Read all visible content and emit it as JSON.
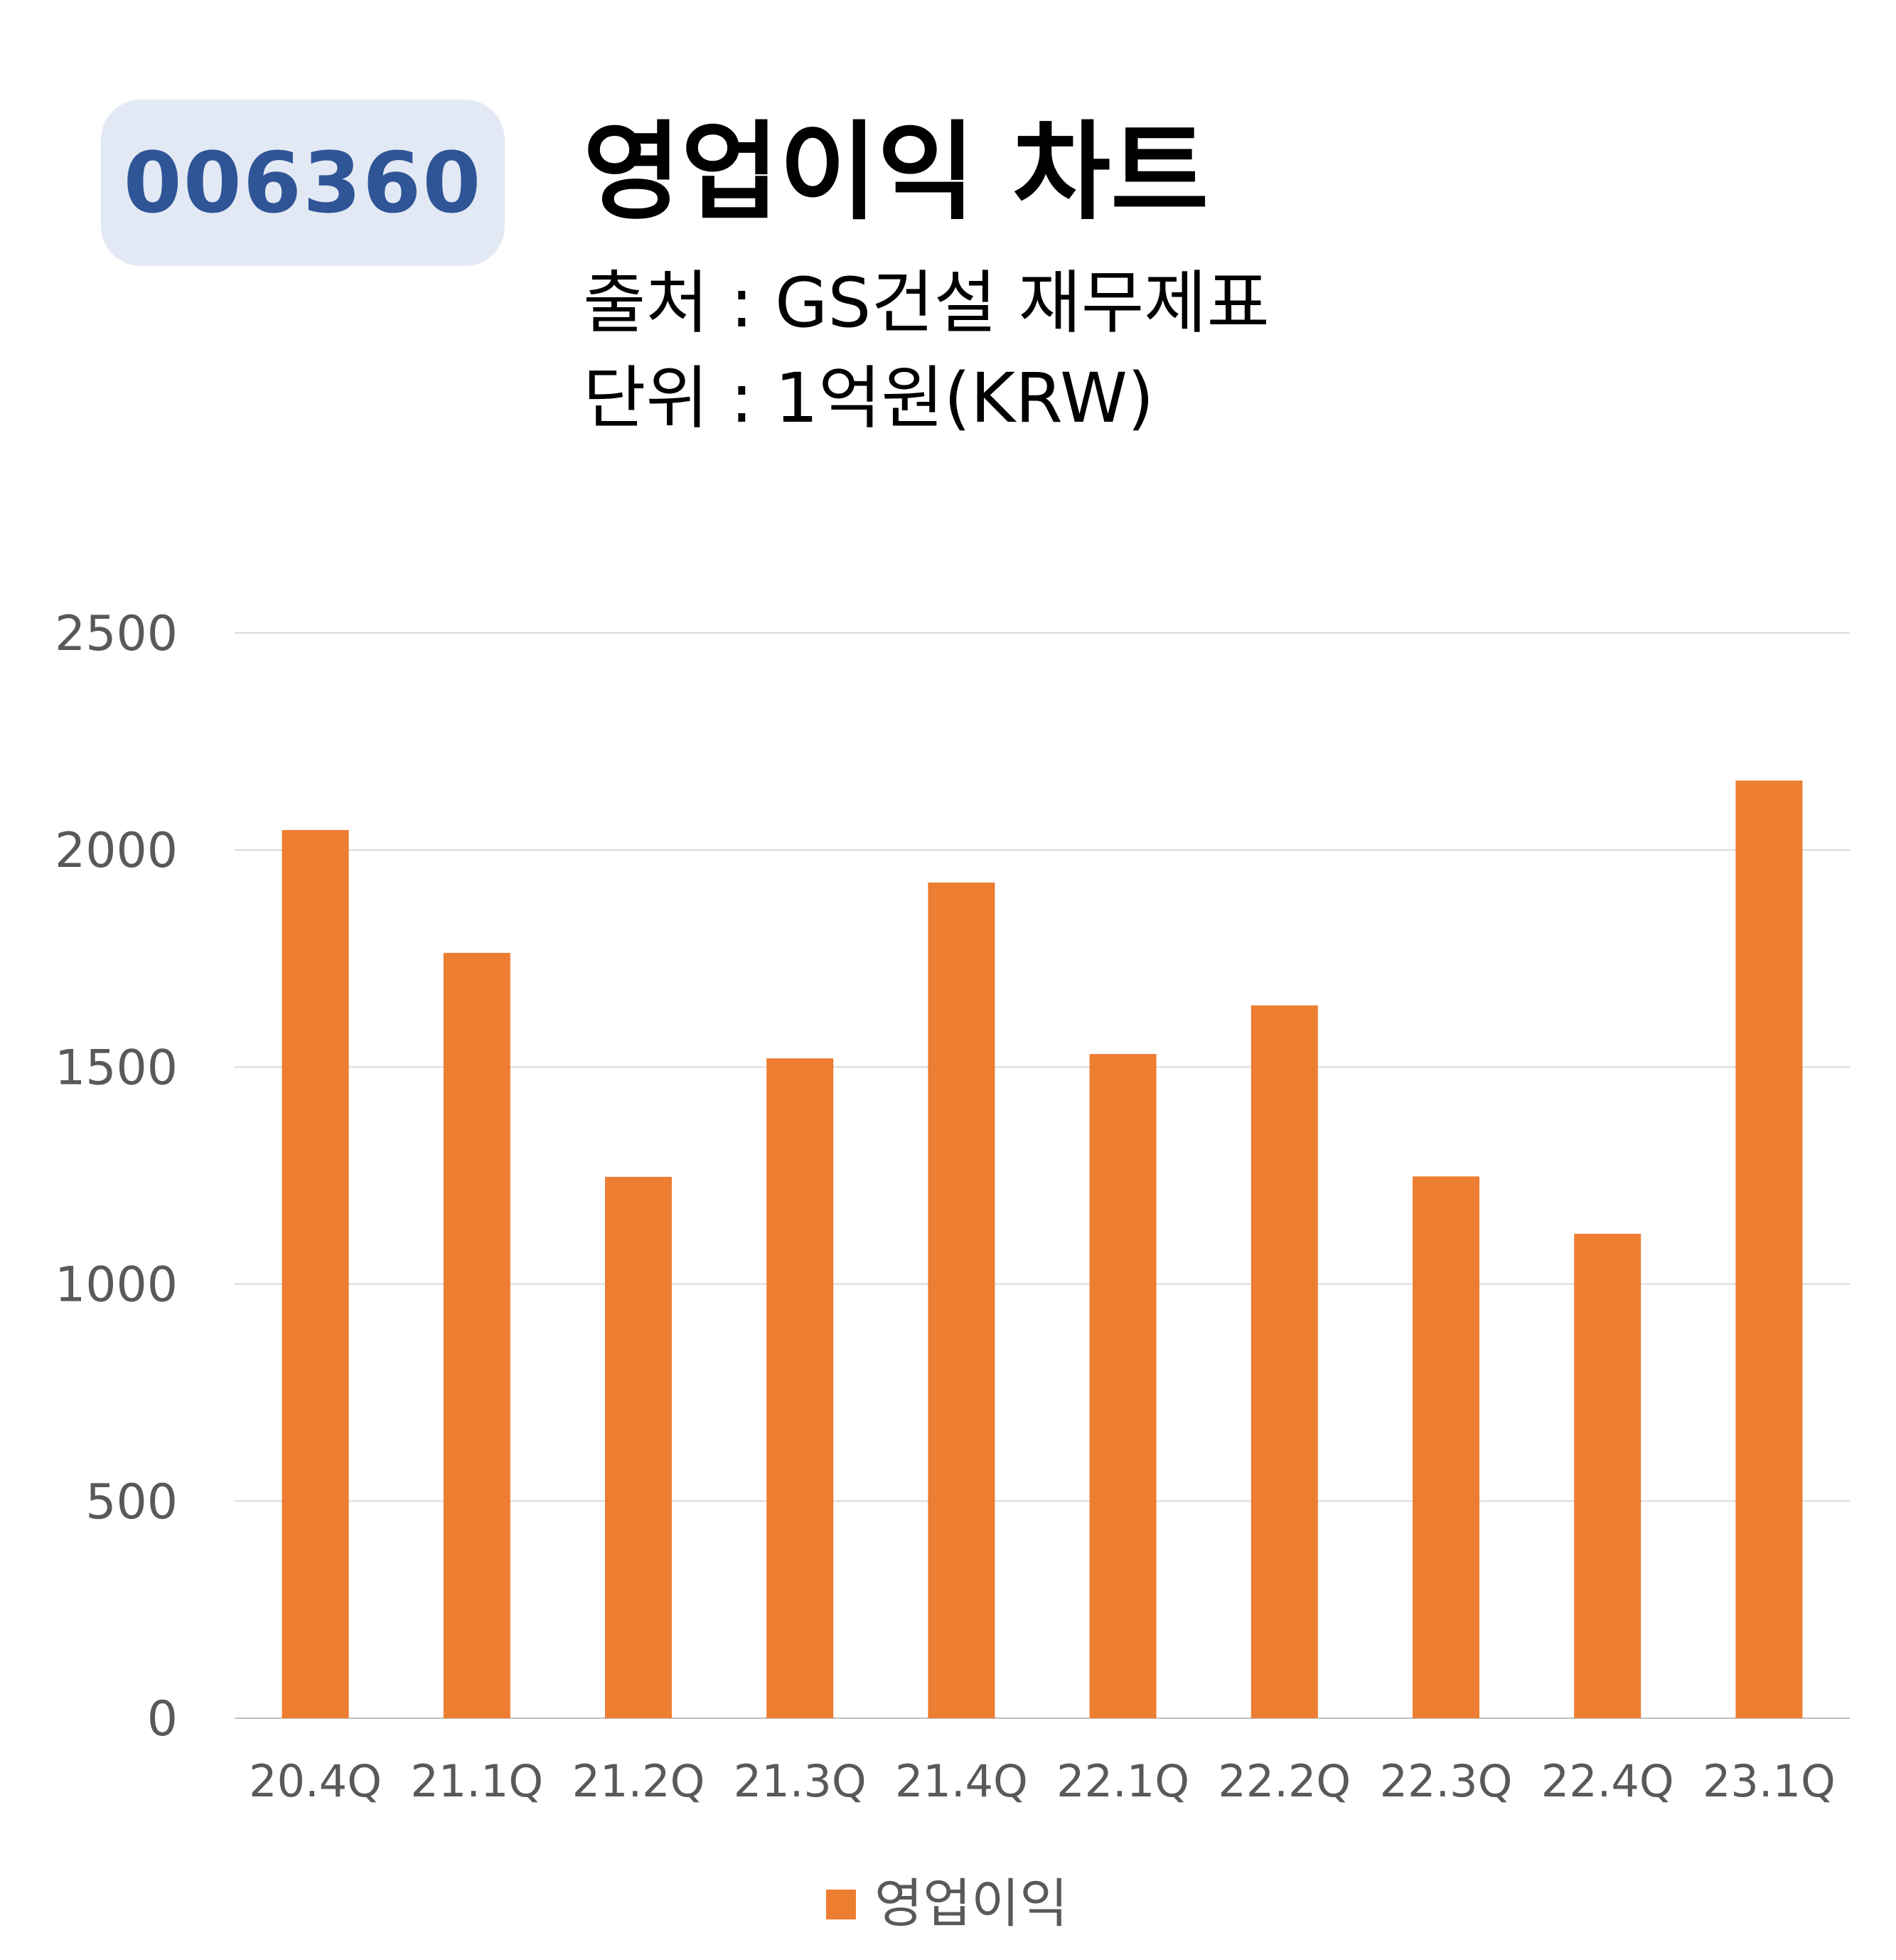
{
  "header": {
    "ticker": "006360",
    "title": "영업이익 차트",
    "source": "출처 : GS건설 재무제표",
    "unit": "단위 : 1억원(KRW)"
  },
  "chart_data": {
    "type": "bar",
    "categories": [
      "20.4Q",
      "21.1Q",
      "21.2Q",
      "21.3Q",
      "21.4Q",
      "22.1Q",
      "22.2Q",
      "22.3Q",
      "22.4Q",
      "23.1Q"
    ],
    "series": [
      {
        "name": "영업이익",
        "values": [
          2046,
          1763,
          1247,
          1520,
          1925,
          1530,
          1642,
          1248,
          1116,
          2160
        ],
        "color": "#ed7d31"
      }
    ],
    "ylim": [
      0,
      2500
    ],
    "yticks": [
      0,
      500,
      1000,
      1500,
      2000,
      2500
    ],
    "grid": true,
    "legend": "bottom-center",
    "xlabel": "",
    "ylabel": ""
  }
}
